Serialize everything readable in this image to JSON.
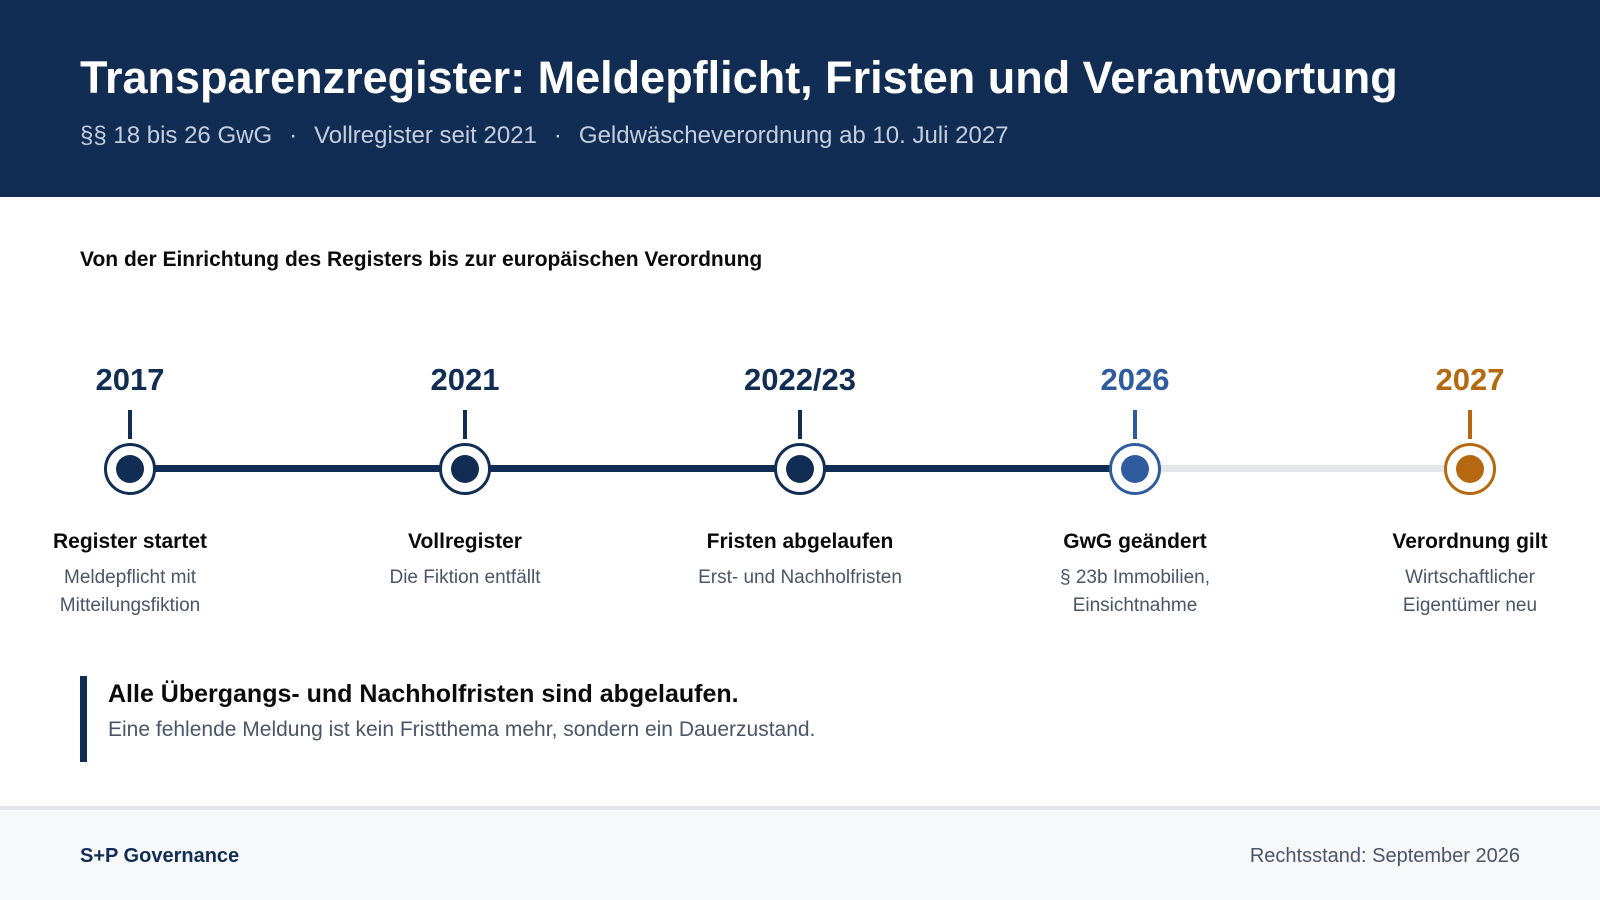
{
  "header": {
    "title": "Transparenzregister: Meldepflicht, Fristen und Verantwortung",
    "subtitle_parts": [
      "§§ 18 bis 26 GwG",
      "Vollregister seit 2021",
      "Geldwäscheverordnung ab 10. Juli 2027"
    ],
    "separator": "·"
  },
  "section": {
    "title": "Von der Einrichtung des Registers bis zur europäischen Verordnung"
  },
  "milestones": [
    {
      "year": "2017",
      "title": "Register startet",
      "desc": "Meldepflicht mit Mitteilungsfiktion",
      "status": "done",
      "color": "#112d54"
    },
    {
      "year": "2021",
      "title": "Vollregister",
      "desc": "Die Fiktion entfällt",
      "status": "done",
      "color": "#112d54"
    },
    {
      "year": "2022/23",
      "title": "Fristen abgelaufen",
      "desc": "Erst- und Nachholfristen",
      "status": "done",
      "color": "#112d54"
    },
    {
      "year": "2026",
      "title": "GwG geändert",
      "desc": "§ 23b Immobilien, Einsichtnahme",
      "status": "current",
      "color": "#2f5c9e"
    },
    {
      "year": "2027",
      "title": "Verordnung gilt",
      "desc": "Wirtschaftlicher Eigentümer neu",
      "status": "future",
      "color": "#b5680f"
    }
  ],
  "colors": {
    "primary": "#112d54",
    "current": "#2f5c9e",
    "future": "#b5680f",
    "track_inactive": "#e3e6ea"
  },
  "callout": {
    "title": "Alle Übergangs- und Nachholfristen sind abgelaufen.",
    "text": "Eine fehlende Meldung ist kein Fristthema mehr, sondern ein Dauerzustand."
  },
  "footer": {
    "brand": "S+P Governance",
    "legal": "Rechtsstand: September 2026"
  }
}
